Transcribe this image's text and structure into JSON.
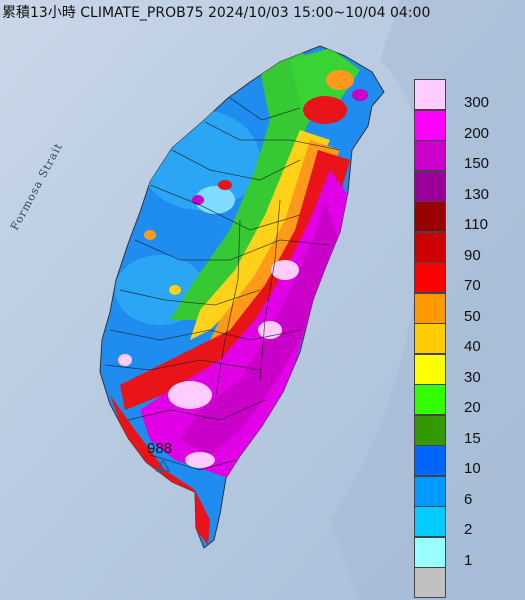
{
  "title": "累積13小時 CLIMATE_PROB75 2024/10/03 15:00~10/04 04:00",
  "strait_label": "Formosa Strait",
  "max_value_label": "988",
  "legend": [
    {
      "label": "300",
      "color": "#ffccff"
    },
    {
      "label": "200",
      "color": "#ff00ff"
    },
    {
      "label": "150",
      "color": "#cc00cc"
    },
    {
      "label": "130",
      "color": "#990099"
    },
    {
      "label": "110",
      "color": "#990000"
    },
    {
      "label": "90",
      "color": "#cc0000"
    },
    {
      "label": "70",
      "color": "#ff0000"
    },
    {
      "label": "50",
      "color": "#ff9900"
    },
    {
      "label": "40",
      "color": "#ffcc00"
    },
    {
      "label": "30",
      "color": "#ffff00"
    },
    {
      "label": "20",
      "color": "#33ff00"
    },
    {
      "label": "15",
      "color": "#339900"
    },
    {
      "label": "10",
      "color": "#0066ff"
    },
    {
      "label": "6",
      "color": "#0099ff"
    },
    {
      "label": "2",
      "color": "#00ccff"
    },
    {
      "label": "1",
      "color": "#99ffff"
    },
    {
      "label": "",
      "color": "#c0c0c0"
    }
  ]
}
